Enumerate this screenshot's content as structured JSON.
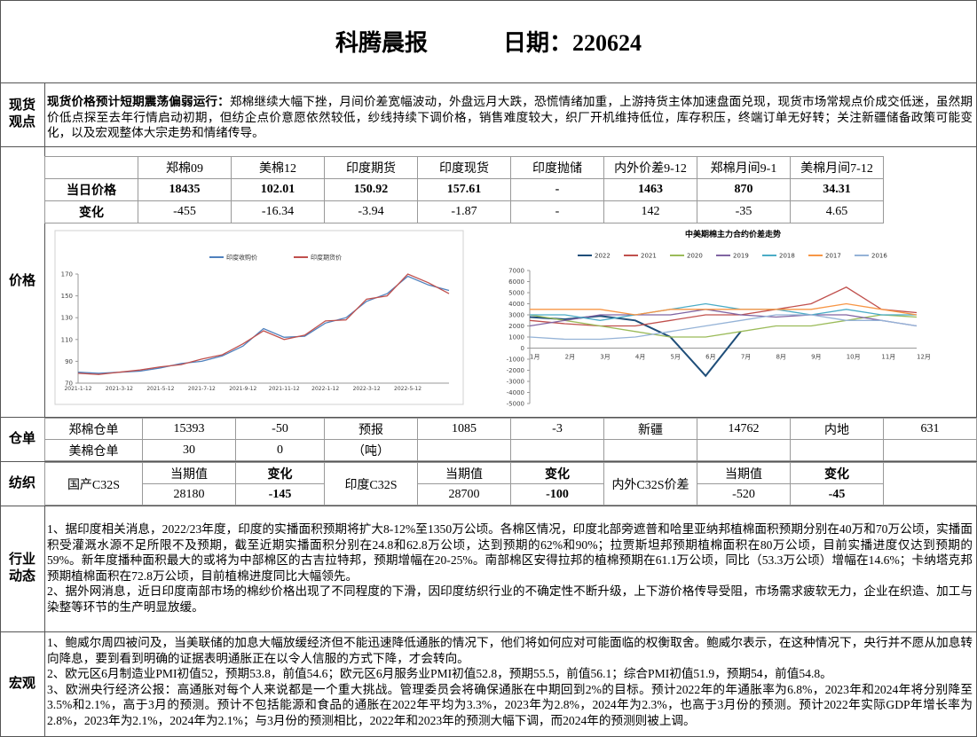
{
  "header": {
    "title": "科腾晨报",
    "date": "日期：220624"
  },
  "spot": {
    "label": "现货观点",
    "heading": "现货价格预计短期震荡偏弱运行：",
    "text": "郑棉继续大幅下挫，月间价差宽幅波动，外盘远月大跌，恐慌情绪加重，上游持货主体加速盘面兑现，现货市场常规点价成交低迷，虽然期价低点探至去年行情启动初期，但纺企点价意愿依然较低，纱线持续下调价格，销售难度较大，织厂开机维持低位，库存积压，终端订单无好转；关注新疆储备政策可能变化，以及宏观整体大宗走势和情绪传导。"
  },
  "price": {
    "label": "价格",
    "columns": [
      "郑棉09",
      "美棉12",
      "印度期货",
      "印度现货",
      "印度抛储",
      "内外价差9-12",
      "郑棉月间9-1",
      "美棉月间7-12"
    ],
    "rows": [
      {
        "label": "当日价格",
        "cells": [
          "18435",
          "102.01",
          "150.92",
          "157.61",
          "-",
          "1463",
          "870",
          "34.31"
        ]
      },
      {
        "label": "变化",
        "cells": [
          "-455",
          "-16.34",
          "-3.94",
          "-1.87",
          "-",
          "142",
          "-35",
          "4.65"
        ]
      }
    ]
  },
  "chart_data": [
    {
      "type": "line",
      "categories": [
        "2021-1-12",
        null,
        "2021-3-12",
        null,
        "2021-5-12",
        null,
        "2021-7-12",
        null,
        "2021-9-12",
        null,
        "2021-11-12",
        null,
        "2022-1-12",
        null,
        "2022-3-12",
        null,
        "2022-5-12",
        null,
        null
      ],
      "series": [
        {
          "name": "印度收购价",
          "color": "#4f81bd",
          "values": [
            80,
            79,
            80,
            81,
            84,
            88,
            90,
            95,
            104,
            120,
            112,
            113,
            125,
            130,
            145,
            152,
            168,
            160,
            155
          ]
        },
        {
          "name": "印度期货价",
          "color": "#c0504d",
          "values": [
            79,
            78,
            80,
            82,
            85,
            87,
            92,
            96,
            106,
            118,
            110,
            114,
            127,
            128,
            147,
            150,
            170,
            162,
            152
          ]
        }
      ],
      "ylim": [
        70,
        170
      ],
      "yticks": [
        70,
        90,
        110,
        130,
        150,
        170
      ],
      "legend": "top"
    },
    {
      "type": "line",
      "title": "中美期棉主力合约价差走势",
      "categories": [
        "1月",
        "2月",
        "3月",
        "4月",
        "5月",
        "6月",
        "7月",
        "8月",
        "9月",
        "10月",
        "11月",
        "12月"
      ],
      "series": [
        {
          "name": "2022",
          "color": "#1f4e79",
          "values": [
            2800,
            2600,
            2900,
            2500,
            1000,
            -2500,
            1500,
            null,
            null,
            null,
            null,
            null
          ]
        },
        {
          "name": "2021",
          "color": "#c0504d",
          "values": [
            2500,
            2200,
            2000,
            2000,
            2500,
            3000,
            3000,
            3500,
            4000,
            5500,
            3500,
            3200
          ]
        },
        {
          "name": "2020",
          "color": "#9bbb59",
          "values": [
            3000,
            2500,
            2000,
            1500,
            1000,
            1000,
            1500,
            2000,
            2000,
            2500,
            3000,
            2800
          ]
        },
        {
          "name": "2019",
          "color": "#8064a2",
          "values": [
            2000,
            2500,
            3000,
            3000,
            3000,
            3500,
            3000,
            2800,
            3000,
            3000,
            2500,
            2000
          ]
        },
        {
          "name": "2018",
          "color": "#4bacc6",
          "values": [
            3000,
            3000,
            2500,
            3000,
            3500,
            4000,
            3500,
            3500,
            3000,
            3500,
            3000,
            3000
          ]
        },
        {
          "name": "2017",
          "color": "#f79646",
          "values": [
            3500,
            3500,
            3500,
            3000,
            3500,
            3500,
            3500,
            3500,
            3500,
            4000,
            3500,
            3000
          ]
        },
        {
          "name": "2016",
          "color": "#95b3d7",
          "values": [
            1000,
            800,
            800,
            1000,
            1500,
            2000,
            2500,
            3000,
            3000,
            2500,
            2500,
            2000
          ]
        }
      ],
      "ylim": [
        -5000,
        7000
      ],
      "yticks": [
        -5000,
        -4000,
        -3000,
        -2000,
        -1000,
        0,
        1000,
        2000,
        3000,
        4000,
        5000,
        6000,
        7000
      ],
      "legend": "top"
    }
  ],
  "warehouse": {
    "label": "仓单",
    "rows": [
      [
        "郑棉仓单",
        "15393",
        "-50",
        "预报",
        "1085",
        "-3",
        "新疆",
        "14762",
        "内地",
        "631"
      ],
      [
        "美棉仓单",
        "30",
        "0",
        "（吨）"
      ]
    ]
  },
  "textile": {
    "label": "纺织",
    "groups": [
      {
        "name": "国产C32S",
        "headers": [
          "当期值",
          "变化"
        ],
        "values": [
          "28180",
          "-145"
        ]
      },
      {
        "name": "印度C32S",
        "headers": [
          "当期值",
          "变化"
        ],
        "values": [
          "28700",
          "-100"
        ]
      },
      {
        "name": "内外C32S价差",
        "headers": [
          "当期值",
          "变化"
        ],
        "values": [
          "-520",
          "-45"
        ]
      }
    ]
  },
  "industry": {
    "label": "行业动态",
    "paragraphs": [
      "1、据印度相关消息，2022/23年度，印度的实播面积预期将扩大8-12%至1350万公顷。各棉区情况，印度北部旁遮普和哈里亚纳邦植棉面积预期分别在40万和70万公顷，实播面积受灌溉水源不足所限不及预期，截至近期实播面积分别在24.8和62.8万公顷，达到预期的62%和90%；拉贾斯坦邦预期植棉面积在80万公顷，目前实播进度仅达到预期的59%。新年度播种面积最大的或将为中部棉区的古吉拉特邦，预期增幅在20-25%。南部棉区安得拉邦的植棉预期在61.1万公顷，同比（53.3万公顷）增幅在14.6%；卡纳塔克邦预期植棉面积在72.8万公顷，目前植棉进度同比大幅领先。",
      "2、据外网消息，近日印度南部市场的棉纱价格出现了不同程度的下滑，因印度纺织行业的不确定性不断升级，上下游价格传导受阻，市场需求疲软无力，企业在织造、加工与染整等环节的生产明显放缓。"
    ]
  },
  "macro": {
    "label": "宏观",
    "paragraphs": [
      "1、鲍威尔周四被问及，当美联储的加息大幅放缓经济但不能迅速降低通胀的情况下，他们将如何应对可能面临的权衡取舍。鲍威尔表示，在这种情况下，央行并不愿从加息转向降息，要到看到明确的证据表明通胀正在以令人信服的方式下降，才会转向。",
      "2、欧元区6月制造业PMI初值52，预期53.8，前值54.6；欧元区6月服务业PMI初值52.8，预期55.5，前值56.1；综合PMI初值51.9，预期54，前值54.8。",
      "3、欧洲央行经济公报：高通胀对每个人来说都是一个重大挑战。管理委员会将确保通胀在中期回到2%的目标。预计2022年的年通胀率为6.8%，2023年和2024年将分别降至3.5%和2.1%，高于3月的预测。预计不包括能源和食品的通胀在2022年平均为3.3%，2023年为2.8%，2024年为2.3%，也高于3月份的预测。预计2022年实际GDP年增长率为2.8%，2023年为2.1%，2024年为2.1%；与3月份的预测相比，2022年和2023年的预测大幅下调，而2024年的预测则被上调。"
    ]
  }
}
